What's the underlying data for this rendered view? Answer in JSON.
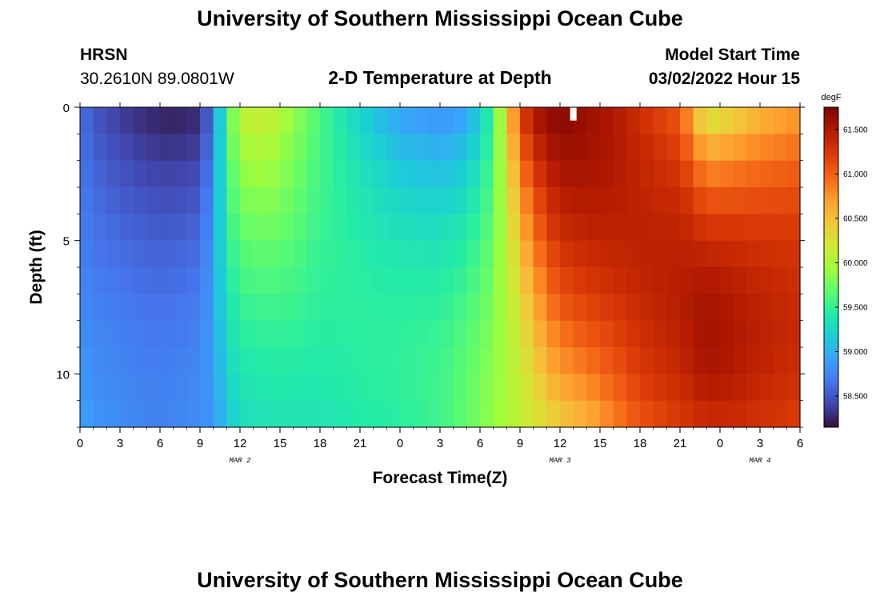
{
  "header": {
    "title": "University of Southern Mississippi Ocean Cube",
    "station": "HRSN",
    "coords": "30.2610N  89.0801W",
    "subtitle": "2-D Temperature at Depth",
    "model_label": "Model Start Time",
    "model_time": "03/02/2022 Hour 15"
  },
  "footer": {
    "title": "University of Southern Mississippi Ocean Cube"
  },
  "colors": {
    "colormap": [
      "#30123b",
      "#4145ab",
      "#4675ed",
      "#39a2fc",
      "#1bcfd4",
      "#24eca6",
      "#61fc6c",
      "#a4fc3b",
      "#d1e834",
      "#f3c63a",
      "#fe9b2d",
      "#f36315",
      "#d93806",
      "#b11901",
      "#7a0402"
    ]
  },
  "chart_data": {
    "type": "heatmap",
    "title": "2-D Temperature at Depth",
    "xlabel": "Forecast Time(Z)",
    "ylabel": "Depth (ft)",
    "x_tick_labels": [
      "0",
      "3",
      "6",
      "9",
      "12",
      "15",
      "18",
      "21",
      "0",
      "3",
      "6",
      "9",
      "12",
      "15",
      "18",
      "21",
      "0",
      "3",
      "6"
    ],
    "x_hours": [
      0,
      3,
      6,
      9,
      12,
      15,
      18,
      21,
      24,
      27,
      30,
      33,
      36,
      39,
      42,
      45,
      48,
      51,
      54
    ],
    "xlim": [
      0,
      54
    ],
    "ylim": [
      0,
      12
    ],
    "y_tick_labels": [
      "0",
      "5",
      "10"
    ],
    "y_ticks": [
      0,
      5,
      10
    ],
    "date_labels": [
      {
        "text": "MAR 2",
        "hour": 12
      },
      {
        "text": "MAR 3",
        "hour": 36
      },
      {
        "text": "MAR 4",
        "hour": 51
      }
    ],
    "depth_rows": 12,
    "time_step_hours": 1,
    "colorbar": {
      "unit": "degF",
      "min": 58.15,
      "max": 61.75,
      "tick_values": [
        58.5,
        59.0,
        59.5,
        60.0,
        60.5,
        61.0,
        61.5
      ],
      "tick_labels": [
        "58.500",
        "59.000",
        "59.500",
        "60.000",
        "60.500",
        "61.000",
        "61.500"
      ]
    },
    "temperature_profile": {
      "description": "Temperature (degF) by forecast hour at surface (0 ft) and bottom (12 ft); intermediate depths interpolated with mid-depth bump",
      "hours": [
        0,
        1,
        3,
        5,
        7,
        9,
        10,
        11,
        12,
        14,
        16,
        18,
        21,
        24,
        27,
        29,
        31,
        33,
        34,
        35,
        36,
        38,
        40,
        42,
        45,
        47,
        49,
        51,
        54
      ],
      "surface": [
        58.65,
        58.5,
        58.35,
        58.25,
        58.2,
        58.25,
        58.7,
        59.6,
        60.1,
        60.2,
        59.9,
        59.6,
        59.2,
        58.9,
        58.8,
        58.9,
        59.5,
        61.2,
        61.55,
        61.65,
        61.7,
        61.6,
        61.5,
        61.3,
        61.0,
        60.1,
        60.3,
        60.5,
        60.7
      ],
      "mid": [
        58.75,
        58.7,
        58.65,
        58.6,
        58.6,
        58.65,
        58.9,
        59.4,
        59.6,
        59.65,
        59.6,
        59.5,
        59.45,
        59.4,
        59.4,
        59.5,
        59.75,
        60.4,
        60.75,
        61.0,
        61.2,
        61.3,
        61.35,
        61.4,
        61.45,
        61.45,
        61.4,
        61.35,
        61.3
      ],
      "bottom": [
        58.95,
        58.85,
        58.8,
        58.75,
        58.75,
        58.8,
        58.85,
        59.1,
        59.3,
        59.35,
        59.35,
        59.35,
        59.4,
        59.45,
        59.55,
        59.7,
        59.9,
        60.1,
        60.2,
        60.3,
        60.4,
        60.55,
        60.8,
        61.05,
        61.2,
        61.3,
        61.3,
        61.25,
        61.2
      ]
    },
    "missing_marker": {
      "hour": 37,
      "depth_start": 0,
      "depth_end": 0.5
    }
  }
}
